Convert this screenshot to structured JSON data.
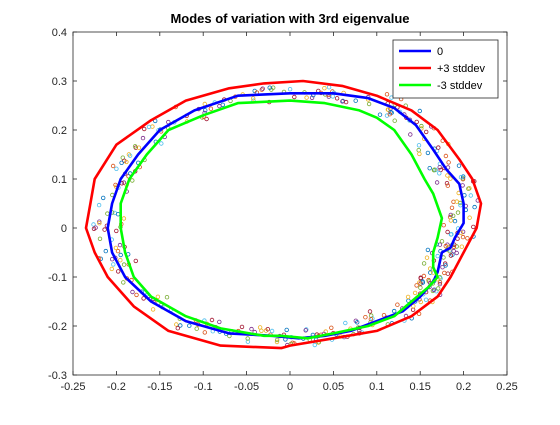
{
  "chart_data": {
    "type": "line",
    "title": "Modes of variation with 3rd eigenvalue",
    "xlabel": "",
    "ylabel": "",
    "xlim": [
      -0.25,
      0.25
    ],
    "ylim": [
      -0.3,
      0.4
    ],
    "xticks": [
      "-0.25",
      "-0.2",
      "-0.15",
      "-0.1",
      "-0.05",
      "0",
      "0.05",
      "0.1",
      "0.15",
      "0.2",
      "0.25"
    ],
    "yticks": [
      "-0.3",
      "-0.2",
      "-0.1",
      "0",
      "0.1",
      "0.2",
      "0.3",
      "0.4"
    ],
    "grid": false,
    "legend_position": "top-right",
    "series": [
      {
        "name": "0",
        "color": "#0000ff",
        "x": [
          -0.02,
          -0.07,
          -0.12,
          -0.16,
          -0.19,
          -0.205,
          -0.21,
          -0.205,
          -0.195,
          -0.175,
          -0.15,
          -0.11,
          -0.06,
          0.0,
          0.05,
          0.09,
          0.12,
          0.145,
          0.165,
          0.18,
          0.195,
          0.2,
          0.2,
          0.19,
          0.185,
          0.175,
          0.17,
          0.165,
          0.16,
          0.15,
          0.13,
          0.1,
          0.07,
          0.04,
          0.01,
          -0.02
        ],
        "y": [
          -0.22,
          -0.215,
          -0.19,
          -0.15,
          -0.1,
          -0.05,
          0.0,
          0.05,
          0.1,
          0.15,
          0.2,
          0.24,
          0.27,
          0.275,
          0.275,
          0.265,
          0.245,
          0.21,
          0.16,
          0.12,
          0.09,
          0.05,
          0.01,
          -0.02,
          -0.04,
          -0.05,
          -0.09,
          -0.11,
          -0.12,
          -0.14,
          -0.17,
          -0.19,
          -0.21,
          -0.22,
          -0.225,
          -0.22
        ]
      },
      {
        "name": "+3 stddev",
        "color": "#ff0000",
        "x": [
          -0.01,
          -0.08,
          -0.14,
          -0.18,
          -0.21,
          -0.225,
          -0.235,
          -0.23,
          -0.225,
          -0.2,
          -0.16,
          -0.12,
          -0.07,
          -0.03,
          0.015,
          0.06,
          0.1,
          0.14,
          0.17,
          0.195,
          0.21,
          0.22,
          0.215,
          0.2,
          0.185,
          0.17,
          0.14,
          0.1,
          0.05,
          0.0,
          -0.01
        ],
        "y": [
          -0.245,
          -0.24,
          -0.21,
          -0.16,
          -0.1,
          -0.05,
          0.0,
          0.05,
          0.1,
          0.17,
          0.22,
          0.26,
          0.285,
          0.295,
          0.3,
          0.29,
          0.27,
          0.24,
          0.2,
          0.14,
          0.1,
          0.05,
          0.0,
          -0.05,
          -0.1,
          -0.14,
          -0.18,
          -0.21,
          -0.225,
          -0.24,
          -0.245
        ]
      },
      {
        "name": "-3 stddev",
        "color": "#00ff00",
        "x": [
          -0.03,
          -0.08,
          -0.12,
          -0.16,
          -0.18,
          -0.19,
          -0.195,
          -0.195,
          -0.185,
          -0.165,
          -0.14,
          -0.1,
          -0.06,
          0.0,
          0.04,
          0.08,
          0.1,
          0.12,
          0.14,
          0.155,
          0.165,
          0.175,
          0.17,
          0.165,
          0.165,
          0.17,
          0.16,
          0.14,
          0.12,
          0.09,
          0.05,
          0.02,
          -0.01,
          -0.03
        ],
        "y": [
          -0.22,
          -0.205,
          -0.18,
          -0.14,
          -0.1,
          -0.05,
          0.0,
          0.05,
          0.1,
          0.15,
          0.2,
          0.23,
          0.255,
          0.26,
          0.255,
          0.24,
          0.225,
          0.2,
          0.15,
          0.1,
          0.07,
          0.02,
          -0.02,
          -0.05,
          -0.08,
          -0.1,
          -0.12,
          -0.15,
          -0.18,
          -0.2,
          -0.215,
          -0.225,
          -0.22,
          -0.22
        ]
      }
    ],
    "scatter_colors": [
      "#0072bd",
      "#d95319",
      "#edb120",
      "#7e2f8e",
      "#77ac30",
      "#4dbeee",
      "#a2142f"
    ]
  }
}
